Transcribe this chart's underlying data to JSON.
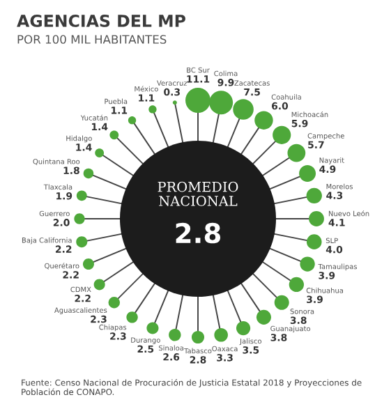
{
  "chart_data": {
    "type": "other",
    "title": "AGENCIAS DEL MP",
    "subtitle": "POR 100 MIL HABITANTES",
    "categories": [
      "BC Sur",
      "Colima",
      "Zacatecas",
      "Coahuila",
      "Michoacán",
      "Campeche",
      "Nayarit",
      "Morelos",
      "Nuevo León",
      "SLP",
      "Tamaulipas",
      "Chihuahua",
      "Sonora",
      "Guanajuato",
      "Jalisco",
      "Oaxaca",
      "Tabasco",
      "Sinaloa",
      "Durango",
      "Chiapas",
      "Aguascalientes",
      "CDMX",
      "Querétaro",
      "Baja California",
      "Guerrero",
      "Tlaxcala",
      "Quintana Roo",
      "Hidalgo",
      "Yucatán",
      "Puebla",
      "México",
      "Veracruz"
    ],
    "values": [
      11.1,
      9.9,
      7.5,
      6.0,
      5.9,
      5.7,
      4.9,
      4.3,
      4.1,
      4.0,
      3.9,
      3.9,
      3.8,
      3.8,
      3.5,
      3.3,
      2.8,
      2.6,
      2.5,
      2.3,
      2.3,
      2.2,
      2.2,
      2.2,
      2.0,
      1.9,
      1.8,
      1.4,
      1.4,
      1.1,
      1.1,
      0.3
    ],
    "value_labels": [
      "11.1",
      "9.9",
      "7.5",
      "6.0",
      "5.9",
      "5.7",
      "4.9",
      "4.3",
      "4.1",
      "4.0",
      "3.9",
      "3.9",
      "3.8",
      "3.8",
      "3.5",
      "3.3",
      "2.8",
      "2.6",
      "2.5",
      "2.3",
      "2.3",
      "2.2",
      "2.2",
      "2.2",
      "2.0",
      "1.9",
      "1.8",
      "1.4",
      "1.4",
      "1.1",
      "1.1",
      "0.3"
    ],
    "color": "#4ea83a",
    "annotations": [
      "PROMEDIO NACIONAL",
      "2.8",
      "Fuente: Censo Nacional de Procuración de Justicia Estatal 2018 y Proyecciones de Población de CONAPO."
    ]
  }
}
